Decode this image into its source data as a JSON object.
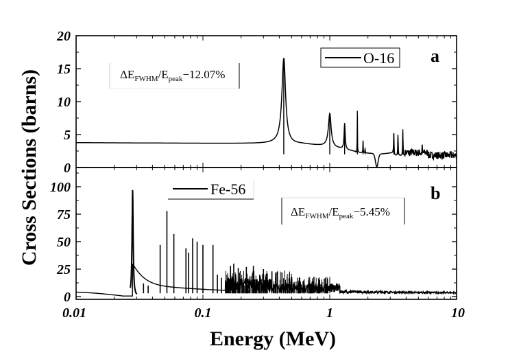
{
  "chart_data": [
    {
      "type": "line",
      "panel": "a",
      "panel_label": "a",
      "xscale": "log",
      "xlim": [
        0.01,
        10
      ],
      "ylim": [
        0,
        20
      ],
      "yticks": [
        "0",
        "5",
        "10",
        "15",
        "20"
      ],
      "ytick_values": [
        0,
        5,
        10,
        15,
        20
      ],
      "legend": {
        "entries": [
          "O-16"
        ],
        "placement": "top-right"
      },
      "annotation": {
        "prefix": "ΔE",
        "sub1": "FWHM",
        "mid": "/E",
        "sub2": "peak",
        "suffix": "−12.07%"
      },
      "series": [
        {
          "name": "O-16",
          "baseline": [
            [
              0.01,
              3.75
            ],
            [
              0.1,
              3.7
            ],
            [
              0.3,
              3.6
            ],
            [
              0.36,
              3.9
            ]
          ],
          "resonances": [
            {
              "e": 0.434,
              "peak": 16.6,
              "width": 0.035
            },
            {
              "e": 1.0,
              "peak": 8.2,
              "width": 0.06
            },
            {
              "e": 1.31,
              "peak": 6.7,
              "width": 0.03
            },
            {
              "e": 1.65,
              "peak": 8.6,
              "width": 0.008
            },
            {
              "e": 1.83,
              "peak": 4.1,
              "width": 0.01
            },
            {
              "e": 1.9,
              "peak": 3.0,
              "width": 0.01
            },
            {
              "e": 3.2,
              "peak": 5.2,
              "width": 0.03
            },
            {
              "e": 3.45,
              "peak": 5.0,
              "width": 0.03
            },
            {
              "e": 3.77,
              "peak": 5.8,
              "width": 0.03
            },
            {
              "e": 4.4,
              "peak": 2.6,
              "width": 0.02
            },
            {
              "e": 5.35,
              "peak": 3.4,
              "width": 0.02
            }
          ],
          "dip": {
            "e": 2.35,
            "min": 0.1
          },
          "tail_level": 1.3
        }
      ]
    },
    {
      "type": "line",
      "panel": "b",
      "panel_label": "b",
      "xscale": "log",
      "xlim": [
        0.01,
        10
      ],
      "ylim": [
        -2.5,
        117.5
      ],
      "yticks": [
        "0",
        "25",
        "50",
        "75",
        "100"
      ],
      "ytick_values": [
        0,
        25,
        50,
        75,
        100
      ],
      "xticks": [
        "0.01",
        "0.1",
        "1",
        "10"
      ],
      "xtick_values": [
        0.01,
        0.1,
        1,
        10
      ],
      "xlabel": "Energy (MeV)",
      "ylabel": "Cross Sections (barns)",
      "legend": {
        "entries": [
          "Fe-56"
        ],
        "placement": "top-center"
      },
      "annotation": {
        "prefix": "ΔE",
        "sub1": "FWHM",
        "mid": "/E",
        "sub2": "peak",
        "suffix": "−5.45%"
      },
      "series": [
        {
          "name": "Fe-56",
          "baseline_start": 4.0,
          "dip": {
            "e": 0.024,
            "min": 0.3
          },
          "resonances": [
            {
              "e": 0.0279,
              "peak": 97
            },
            {
              "e": 0.034,
              "peak": 12
            },
            {
              "e": 0.037,
              "peak": 10
            },
            {
              "e": 0.046,
              "peak": 47
            },
            {
              "e": 0.052,
              "peak": 78
            },
            {
              "e": 0.059,
              "peak": 57
            },
            {
              "e": 0.0735,
              "peak": 44
            },
            {
              "e": 0.077,
              "peak": 40
            },
            {
              "e": 0.083,
              "peak": 53
            },
            {
              "e": 0.09,
              "peak": 50
            },
            {
              "e": 0.1,
              "peak": 47
            },
            {
              "e": 0.12,
              "peak": 47
            },
            {
              "e": 0.13,
              "peak": 20
            },
            {
              "e": 0.14,
              "peak": 17
            },
            {
              "e": 0.165,
              "peak": 28
            },
            {
              "e": 0.175,
              "peak": 30
            },
            {
              "e": 0.19,
              "peak": 26
            },
            {
              "e": 0.22,
              "peak": 27
            },
            {
              "e": 0.25,
              "peak": 28
            },
            {
              "e": 0.3,
              "peak": 25
            },
            {
              "e": 0.35,
              "peak": 23
            },
            {
              "e": 0.42,
              "peak": 22
            },
            {
              "e": 0.5,
              "peak": 18
            },
            {
              "e": 0.58,
              "peak": 17
            },
            {
              "e": 0.75,
              "peak": 18
            },
            {
              "e": 1.2,
              "peak": 10
            }
          ],
          "tail_level": 3.0
        }
      ]
    }
  ]
}
